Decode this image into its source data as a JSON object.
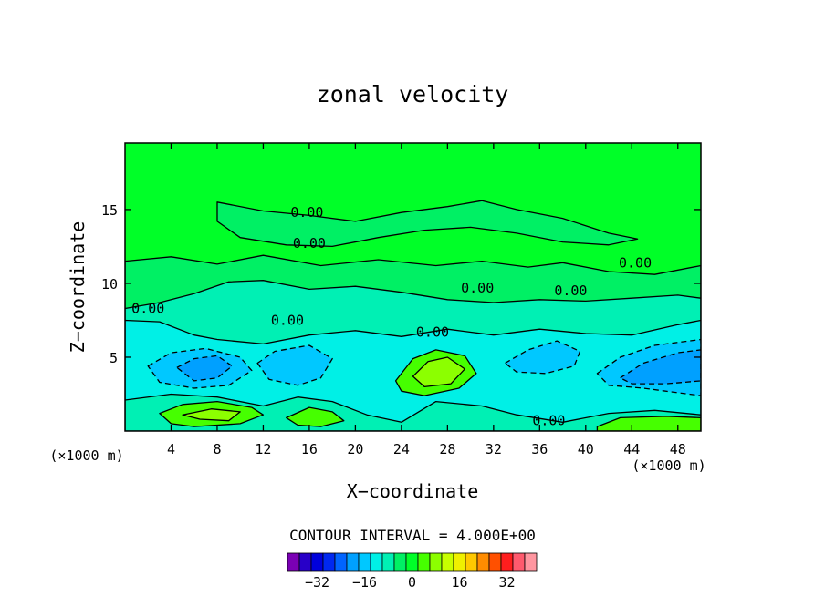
{
  "chart_data": {
    "type": "heatmap",
    "title": "zonal velocity",
    "xlabel": "X−coordinate",
    "ylabel": "Z−coordinate",
    "x_units_left": "(×1000 m)",
    "x_units_right": "(×1000 m)",
    "xlim": [
      0,
      50
    ],
    "ylim": [
      0,
      19.5
    ],
    "x_ticks": [
      4,
      8,
      12,
      16,
      20,
      24,
      28,
      32,
      36,
      40,
      44,
      48
    ],
    "y_ticks": [
      5,
      10,
      15
    ],
    "contour_interval_text": "CONTOUR INTERVAL = 4.000E+00",
    "contour_interval": 4,
    "contour_labels": [
      {
        "text": "0.00",
        "x": 15.8,
        "y": 14.8
      },
      {
        "text": "0.00",
        "x": 16.0,
        "y": 12.7
      },
      {
        "text": "0.00",
        "x": 44.3,
        "y": 11.4
      },
      {
        "text": "0.00",
        "x": 30.6,
        "y": 9.7
      },
      {
        "text": "0.00",
        "x": 38.7,
        "y": 9.5
      },
      {
        "text": "0.00",
        "x": 2.0,
        "y": 8.3
      },
      {
        "text": "0.00",
        "x": 14.1,
        "y": 7.5
      },
      {
        "text": "0.00",
        "x": 26.7,
        "y": 6.7
      },
      {
        "text": "0.00",
        "x": 36.8,
        "y": 0.7
      }
    ],
    "colorbar": {
      "ticks": [
        -32,
        -16,
        0,
        16,
        32
      ],
      "colors": [
        "#7a00b4",
        "#2800c8",
        "#0000dc",
        "#0028f0",
        "#0064ff",
        "#00a0ff",
        "#00c8ff",
        "#00f0e6",
        "#00f0b4",
        "#00f064",
        "#00ff28",
        "#46ff00",
        "#8cff00",
        "#c8ff00",
        "#f0f000",
        "#ffc800",
        "#ff8c00",
        "#ff5000",
        "#ff1e1e",
        "#ff5a6e",
        "#ff96a0"
      ]
    },
    "regions": [
      {
        "value": 0,
        "points": [
          [
            0,
            0
          ],
          [
            50,
            0
          ],
          [
            50,
            19.5
          ],
          [
            0,
            19.5
          ]
        ]
      },
      {
        "value": -4,
        "points": [
          [
            0,
            11.5
          ],
          [
            4,
            11.8
          ],
          [
            8,
            11.3
          ],
          [
            12,
            11.9
          ],
          [
            17,
            11.2
          ],
          [
            22,
            11.6
          ],
          [
            27,
            11.2
          ],
          [
            31,
            11.5
          ],
          [
            35,
            11.1
          ],
          [
            38,
            11.4
          ],
          [
            42,
            10.8
          ],
          [
            46,
            10.6
          ],
          [
            50,
            11.2
          ],
          [
            50,
            0
          ],
          [
            0,
            0
          ]
        ]
      },
      {
        "value": -4,
        "points": [
          [
            8,
            15.5
          ],
          [
            12,
            14.9
          ],
          [
            16,
            14.6
          ],
          [
            20,
            14.2
          ],
          [
            24,
            14.8
          ],
          [
            28,
            15.2
          ],
          [
            31,
            15.6
          ],
          [
            34,
            15.0
          ],
          [
            38,
            14.4
          ],
          [
            42,
            13.4
          ],
          [
            44.5,
            13.0
          ],
          [
            42,
            12.6
          ],
          [
            38,
            12.8
          ],
          [
            34,
            13.4
          ],
          [
            30,
            13.8
          ],
          [
            26,
            13.6
          ],
          [
            22,
            13.1
          ],
          [
            18,
            12.5
          ],
          [
            14,
            12.6
          ],
          [
            10,
            13.1
          ],
          [
            8,
            14.2
          ]
        ]
      },
      {
        "value": -8,
        "points": [
          [
            0,
            8.3
          ],
          [
            3,
            8.7
          ],
          [
            6,
            9.3
          ],
          [
            9,
            10.1
          ],
          [
            12,
            10.2
          ],
          [
            16,
            9.6
          ],
          [
            20,
            9.8
          ],
          [
            24,
            9.4
          ],
          [
            28,
            8.9
          ],
          [
            32,
            8.7
          ],
          [
            36,
            8.9
          ],
          [
            40,
            8.8
          ],
          [
            44,
            9.0
          ],
          [
            48,
            9.2
          ],
          [
            50,
            9.0
          ],
          [
            50,
            0
          ],
          [
            0,
            0
          ]
        ]
      },
      {
        "value": -12,
        "points": [
          [
            0,
            7.5
          ],
          [
            3,
            7.4
          ],
          [
            6,
            6.5
          ],
          [
            8,
            6.2
          ],
          [
            12,
            5.9
          ],
          [
            16,
            6.5
          ],
          [
            20,
            6.8
          ],
          [
            24,
            6.4
          ],
          [
            28,
            6.9
          ],
          [
            32,
            6.5
          ],
          [
            36,
            6.9
          ],
          [
            40,
            6.6
          ],
          [
            44,
            6.5
          ],
          [
            48,
            7.2
          ],
          [
            50,
            7.5
          ],
          [
            50,
            0
          ],
          [
            0,
            0
          ]
        ]
      },
      {
        "value": -16,
        "points": [
          [
            2,
            4.4
          ],
          [
            4,
            5.3
          ],
          [
            7,
            5.6
          ],
          [
            10,
            5.0
          ],
          [
            11,
            4.1
          ],
          [
            9,
            3.1
          ],
          [
            6,
            2.9
          ],
          [
            3,
            3.3
          ]
        ]
      },
      {
        "value": -16,
        "points": [
          [
            11.5,
            4.6
          ],
          [
            13,
            5.4
          ],
          [
            16,
            5.8
          ],
          [
            18,
            4.9
          ],
          [
            17,
            3.6
          ],
          [
            15,
            3.1
          ],
          [
            12.5,
            3.5
          ]
        ]
      },
      {
        "value": -16,
        "points": [
          [
            33,
            4.6
          ],
          [
            35,
            5.5
          ],
          [
            37.5,
            6.1
          ],
          [
            39.5,
            5.4
          ],
          [
            39,
            4.4
          ],
          [
            36.5,
            3.9
          ],
          [
            34,
            4.0
          ]
        ]
      },
      {
        "value": -16,
        "points": [
          [
            41,
            3.9
          ],
          [
            43,
            5.0
          ],
          [
            46,
            5.8
          ],
          [
            49,
            6.1
          ],
          [
            50,
            6.2
          ],
          [
            50,
            2.4
          ],
          [
            48,
            2.6
          ],
          [
            45,
            2.9
          ],
          [
            42,
            3.1
          ]
        ]
      },
      {
        "value": -20,
        "points": [
          [
            4.5,
            4.3
          ],
          [
            6,
            4.9
          ],
          [
            8,
            5.1
          ],
          [
            9.3,
            4.4
          ],
          [
            8,
            3.6
          ],
          [
            6,
            3.4
          ]
        ]
      },
      {
        "value": -20,
        "points": [
          [
            43,
            3.6
          ],
          [
            45,
            4.6
          ],
          [
            48,
            5.3
          ],
          [
            50,
            5.5
          ],
          [
            50,
            3.4
          ],
          [
            47,
            3.2
          ],
          [
            44,
            3.2
          ]
        ]
      },
      {
        "value": -16,
        "points": [
          [
            24.5,
            0
          ],
          [
            26,
            0.8
          ],
          [
            29,
            1.2
          ],
          [
            32,
            0.8
          ],
          [
            33,
            0
          ],
          [
            29,
            0
          ]
        ]
      },
      {
        "value": -8,
        "points": [
          [
            0,
            2.1
          ],
          [
            4,
            2.5
          ],
          [
            8,
            2.3
          ],
          [
            12,
            1.7
          ],
          [
            15,
            2.3
          ],
          [
            18,
            2.0
          ],
          [
            21,
            1.1
          ],
          [
            24,
            0.6
          ],
          [
            27,
            2.0
          ],
          [
            31,
            1.7
          ],
          [
            34,
            1.1
          ],
          [
            38,
            0.6
          ],
          [
            42,
            1.2
          ],
          [
            46,
            1.4
          ],
          [
            50,
            1.1
          ],
          [
            50,
            0
          ],
          [
            0,
            0
          ]
        ]
      },
      {
        "value": 4,
        "points": [
          [
            3,
            1.2
          ],
          [
            5,
            1.8
          ],
          [
            8,
            2.0
          ],
          [
            11,
            1.6
          ],
          [
            12,
            1.1
          ],
          [
            10,
            0.5
          ],
          [
            6,
            0.3
          ],
          [
            4,
            0.5
          ]
        ]
      },
      {
        "value": 4,
        "points": [
          [
            14,
            0.9
          ],
          [
            16,
            1.6
          ],
          [
            18,
            1.3
          ],
          [
            19,
            0.7
          ],
          [
            17,
            0.3
          ],
          [
            15,
            0.4
          ]
        ]
      },
      {
        "value": 4,
        "points": [
          [
            41,
            0.3
          ],
          [
            43,
            0.9
          ],
          [
            47,
            1.0
          ],
          [
            50,
            0.9
          ],
          [
            50,
            0
          ],
          [
            41,
            0
          ]
        ]
      },
      {
        "value": 8,
        "points": [
          [
            5,
            1.1
          ],
          [
            7.5,
            1.5
          ],
          [
            10,
            1.3
          ],
          [
            9,
            0.7
          ],
          [
            6.5,
            0.8
          ]
        ]
      },
      {
        "value": 4,
        "points": [
          [
            23.5,
            3.4
          ],
          [
            25,
            4.9
          ],
          [
            27,
            5.5
          ],
          [
            29.5,
            5.1
          ],
          [
            30.5,
            3.9
          ],
          [
            29,
            2.9
          ],
          [
            26,
            2.4
          ],
          [
            24,
            2.7
          ]
        ]
      },
      {
        "value": 8,
        "points": [
          [
            25,
            3.7
          ],
          [
            26.3,
            4.7
          ],
          [
            28,
            5.0
          ],
          [
            29.5,
            4.2
          ],
          [
            28.3,
            3.2
          ],
          [
            26,
            3.0
          ]
        ]
      }
    ]
  }
}
